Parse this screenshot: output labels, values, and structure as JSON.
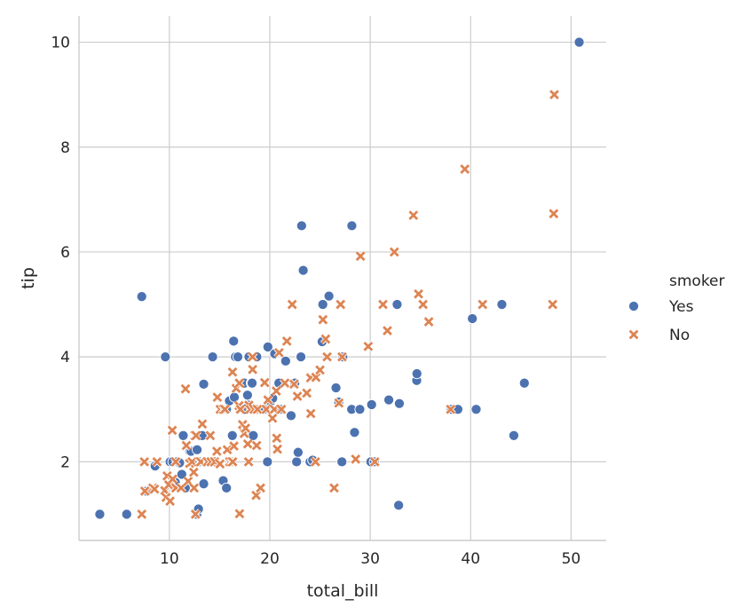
{
  "chart_data": {
    "type": "scatter",
    "xlabel": "total_bill",
    "ylabel": "tip",
    "xlim": [
      1,
      53.5
    ],
    "ylim": [
      0.5,
      10.5
    ],
    "x_ticks": [
      10,
      20,
      30,
      40,
      50
    ],
    "y_ticks": [
      2,
      4,
      6,
      8,
      10
    ],
    "grid": true,
    "legend": {
      "title": "smoker",
      "position": "right",
      "entries": [
        "Yes",
        "No"
      ]
    },
    "colors": {
      "Yes": "#4c72b0",
      "No": "#dd8452"
    },
    "series": [
      {
        "name": "Yes",
        "marker": "circle",
        "points": [
          [
            3.07,
            1.0
          ],
          [
            5.75,
            1.0
          ],
          [
            7.25,
            5.15
          ],
          [
            7.74,
            1.44
          ],
          [
            8.58,
            1.92
          ],
          [
            9.6,
            4.0
          ],
          [
            10.07,
            2.0
          ],
          [
            10.34,
            2.0
          ],
          [
            10.59,
            1.61
          ],
          [
            10.77,
            2.0
          ],
          [
            11.02,
            1.98
          ],
          [
            11.24,
            1.76
          ],
          [
            11.38,
            2.5
          ],
          [
            11.59,
            1.5
          ],
          [
            12.03,
            2.2
          ],
          [
            12.16,
            2.2
          ],
          [
            12.74,
            1.0
          ],
          [
            12.76,
            2.23
          ],
          [
            12.9,
            1.1
          ],
          [
            13.0,
            2.0
          ],
          [
            13.27,
            2.5
          ],
          [
            13.42,
            3.48
          ],
          [
            13.42,
            1.58
          ],
          [
            13.94,
            2.0
          ],
          [
            14.31,
            4.0
          ],
          [
            14.48,
            2.0
          ],
          [
            15.36,
            1.64
          ],
          [
            15.69,
            1.5
          ],
          [
            15.69,
            3.0
          ],
          [
            15.98,
            3.16
          ],
          [
            16.27,
            2.5
          ],
          [
            16.4,
            4.3
          ],
          [
            16.47,
            3.23
          ],
          [
            16.58,
            4.0
          ],
          [
            16.82,
            4.0
          ],
          [
            17.47,
            3.5
          ],
          [
            17.51,
            3.0
          ],
          [
            17.78,
            3.27
          ],
          [
            17.92,
            3.08
          ],
          [
            17.92,
            4.0
          ],
          [
            18.15,
            3.5
          ],
          [
            18.24,
            3.5
          ],
          [
            18.35,
            2.5
          ],
          [
            18.71,
            4.0
          ],
          [
            19.44,
            3.0
          ],
          [
            19.77,
            2.0
          ],
          [
            19.81,
            4.19
          ],
          [
            20.08,
            3.15
          ],
          [
            20.29,
            3.21
          ],
          [
            20.49,
            4.06
          ],
          [
            20.9,
            3.5
          ],
          [
            21.01,
            3.0
          ],
          [
            21.58,
            3.92
          ],
          [
            22.12,
            2.88
          ],
          [
            22.46,
            3.5
          ],
          [
            22.49,
            3.5
          ],
          [
            22.67,
            2.0
          ],
          [
            22.82,
            2.18
          ],
          [
            23.1,
            4.0
          ],
          [
            23.17,
            6.5
          ],
          [
            23.33,
            5.65
          ],
          [
            24.01,
            2.0
          ],
          [
            24.27,
            2.03
          ],
          [
            25.21,
            4.29
          ],
          [
            25.28,
            5.0
          ],
          [
            25.89,
            5.16
          ],
          [
            26.59,
            3.41
          ],
          [
            26.86,
            3.14
          ],
          [
            27.18,
            2.0
          ],
          [
            27.28,
            4.0
          ],
          [
            28.17,
            6.5
          ],
          [
            28.15,
            3.0
          ],
          [
            28.44,
            2.56
          ],
          [
            28.97,
            3.0
          ],
          [
            30.06,
            2.0
          ],
          [
            30.14,
            3.09
          ],
          [
            30.4,
            2.0
          ],
          [
            31.85,
            3.18
          ],
          [
            32.68,
            5.0
          ],
          [
            32.83,
            1.17
          ],
          [
            32.9,
            3.11
          ],
          [
            34.63,
            3.55
          ],
          [
            34.65,
            3.68
          ],
          [
            38.07,
            3.0
          ],
          [
            38.73,
            3.0
          ],
          [
            40.17,
            4.73
          ],
          [
            40.55,
            3.0
          ],
          [
            43.11,
            5.0
          ],
          [
            44.3,
            2.5
          ],
          [
            45.35,
            3.5
          ],
          [
            50.81,
            10.0
          ]
        ]
      },
      {
        "name": "No",
        "marker": "x",
        "points": [
          [
            7.25,
            1.0
          ],
          [
            7.56,
            1.44
          ],
          [
            7.51,
            2.0
          ],
          [
            8.35,
            1.5
          ],
          [
            8.52,
            1.48
          ],
          [
            8.77,
            2.0
          ],
          [
            9.55,
            1.45
          ],
          [
            9.68,
            1.32
          ],
          [
            9.78,
            1.73
          ],
          [
            9.94,
            1.56
          ],
          [
            10.07,
            1.25
          ],
          [
            10.29,
            2.6
          ],
          [
            10.33,
            1.67
          ],
          [
            10.63,
            2.0
          ],
          [
            10.65,
            1.5
          ],
          [
            11.17,
            1.5
          ],
          [
            11.61,
            3.39
          ],
          [
            11.69,
            2.31
          ],
          [
            11.87,
            1.63
          ],
          [
            12.02,
            1.97
          ],
          [
            12.26,
            2.0
          ],
          [
            12.43,
            1.8
          ],
          [
            12.46,
            1.5
          ],
          [
            12.54,
            2.5
          ],
          [
            12.6,
            1.0
          ],
          [
            12.66,
            2.5
          ],
          [
            13.03,
            2.0
          ],
          [
            13.13,
            2.0
          ],
          [
            13.28,
            2.72
          ],
          [
            13.81,
            2.0
          ],
          [
            14.07,
            2.5
          ],
          [
            14.15,
            2.0
          ],
          [
            14.52,
            2.0
          ],
          [
            14.73,
            2.2
          ],
          [
            14.78,
            3.23
          ],
          [
            15.04,
            1.96
          ],
          [
            15.06,
            3.0
          ],
          [
            15.38,
            3.0
          ],
          [
            15.53,
            3.0
          ],
          [
            15.77,
            2.23
          ],
          [
            16.0,
            2.0
          ],
          [
            16.21,
            2.0
          ],
          [
            16.29,
            3.71
          ],
          [
            16.31,
            2.0
          ],
          [
            16.43,
            2.3
          ],
          [
            16.66,
            3.4
          ],
          [
            16.93,
            3.07
          ],
          [
            16.97,
            3.5
          ],
          [
            16.99,
            1.01
          ],
          [
            17.07,
            3.0
          ],
          [
            17.29,
            2.71
          ],
          [
            17.46,
            2.54
          ],
          [
            17.59,
            2.64
          ],
          [
            17.81,
            2.34
          ],
          [
            17.89,
            2.0
          ],
          [
            17.92,
            3.08
          ],
          [
            18.04,
            3.0
          ],
          [
            18.28,
            4.0
          ],
          [
            18.29,
            3.76
          ],
          [
            18.43,
            3.0
          ],
          [
            18.64,
            1.36
          ],
          [
            18.69,
            2.31
          ],
          [
            18.78,
            3.0
          ],
          [
            19.08,
            1.5
          ],
          [
            19.49,
            3.51
          ],
          [
            19.65,
            3.0
          ],
          [
            19.82,
            3.18
          ],
          [
            20.27,
            2.83
          ],
          [
            20.45,
            3.0
          ],
          [
            20.65,
            3.35
          ],
          [
            20.69,
            2.45
          ],
          [
            20.76,
            2.24
          ],
          [
            20.92,
            4.08
          ],
          [
            21.16,
            3.0
          ],
          [
            21.5,
            3.5
          ],
          [
            21.7,
            4.3
          ],
          [
            22.23,
            5.0
          ],
          [
            22.42,
            3.48
          ],
          [
            22.75,
            3.25
          ],
          [
            23.68,
            3.31
          ],
          [
            24.06,
            3.6
          ],
          [
            24.08,
            2.92
          ],
          [
            24.55,
            2.0
          ],
          [
            24.59,
            3.61
          ],
          [
            25.0,
            3.75
          ],
          [
            25.29,
            4.71
          ],
          [
            25.56,
            4.34
          ],
          [
            25.71,
            4.0
          ],
          [
            26.41,
            1.5
          ],
          [
            26.88,
            3.12
          ],
          [
            27.05,
            5.0
          ],
          [
            27.2,
            4.0
          ],
          [
            28.55,
            2.05
          ],
          [
            29.03,
            5.92
          ],
          [
            29.8,
            4.2
          ],
          [
            30.46,
            2.0
          ],
          [
            31.27,
            5.0
          ],
          [
            31.71,
            4.5
          ],
          [
            32.4,
            6.0
          ],
          [
            34.3,
            6.7
          ],
          [
            34.81,
            5.2
          ],
          [
            35.26,
            5.0
          ],
          [
            35.83,
            4.67
          ],
          [
            38.01,
            3.0
          ],
          [
            39.42,
            7.58
          ],
          [
            41.19,
            5.0
          ],
          [
            48.17,
            5.0
          ],
          [
            48.27,
            6.73
          ],
          [
            48.33,
            9.0
          ]
        ]
      }
    ]
  }
}
